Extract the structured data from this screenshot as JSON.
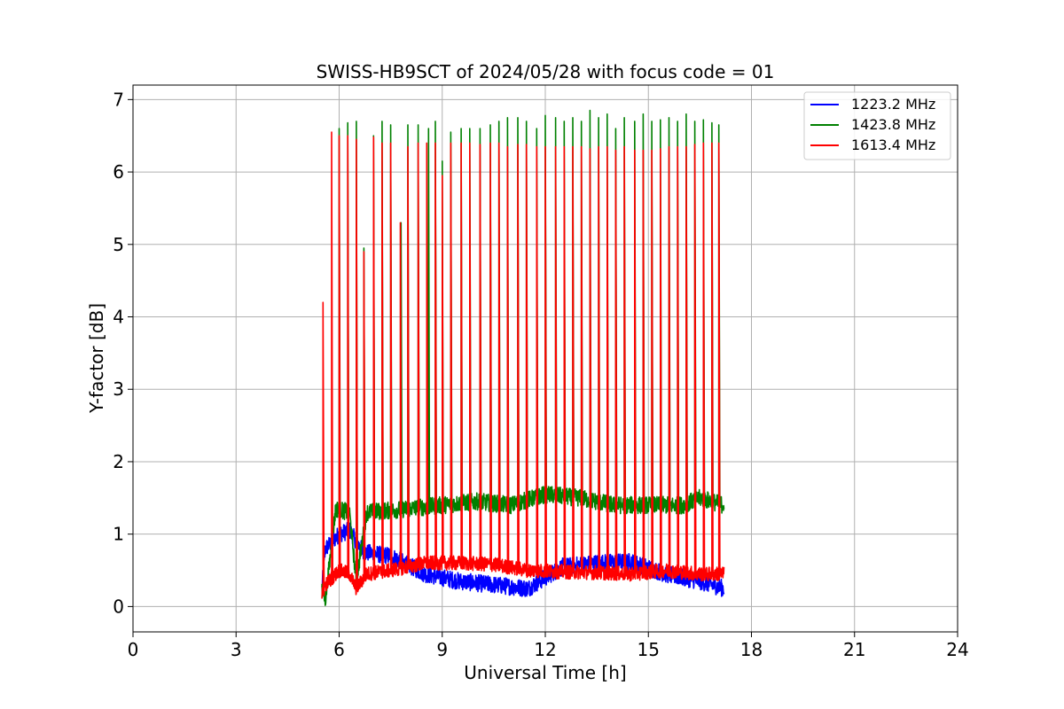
{
  "chart_data": {
    "type": "line",
    "title": "SWISS-HB9SCT of 2024/05/28 with focus code = 01",
    "xlabel": "Universal Time [h]",
    "ylabel": "Y-factor [dB]",
    "xlim": [
      0,
      24
    ],
    "ylim": [
      -0.35,
      7.2
    ],
    "xticks": [
      0,
      3,
      6,
      9,
      12,
      15,
      18,
      21,
      24
    ],
    "yticks": [
      0,
      1,
      2,
      3,
      4,
      5,
      6,
      7
    ],
    "grid": true,
    "legend_position": "top-right",
    "data_start_hour": 5.5,
    "data_end_hour": 17.2,
    "series": [
      {
        "name": "1223.2 MHz",
        "color": "#0000ff",
        "baseline": [
          [
            5.5,
            0.25
          ],
          [
            5.6,
            0.8
          ],
          [
            6.0,
            1.0
          ],
          [
            6.3,
            1.05
          ],
          [
            6.7,
            0.75
          ],
          [
            7.5,
            0.7
          ],
          [
            8.5,
            0.45
          ],
          [
            9.5,
            0.35
          ],
          [
            10.5,
            0.3
          ],
          [
            11.5,
            0.25
          ],
          [
            12.5,
            0.55
          ],
          [
            13.5,
            0.6
          ],
          [
            14.5,
            0.62
          ],
          [
            15.5,
            0.45
          ],
          [
            16.5,
            0.35
          ],
          [
            17.2,
            0.25
          ]
        ],
        "noise_amplitude": 0.12
      },
      {
        "name": "1423.8 MHz",
        "color": "#008000",
        "baseline": [
          [
            5.5,
            0.25
          ],
          [
            5.6,
            0.1
          ],
          [
            5.9,
            1.35
          ],
          [
            6.3,
            1.3
          ],
          [
            6.5,
            0.35
          ],
          [
            6.8,
            1.3
          ],
          [
            8.0,
            1.35
          ],
          [
            9.0,
            1.4
          ],
          [
            10.0,
            1.45
          ],
          [
            11.0,
            1.4
          ],
          [
            12.0,
            1.55
          ],
          [
            13.0,
            1.5
          ],
          [
            14.0,
            1.4
          ],
          [
            15.0,
            1.4
          ],
          [
            16.0,
            1.4
          ],
          [
            16.5,
            1.5
          ],
          [
            17.2,
            1.4
          ]
        ],
        "noise_amplitude": 0.12,
        "peaks": [
          [
            6.0,
            6.6
          ],
          [
            6.25,
            6.68
          ],
          [
            6.5,
            6.7
          ],
          [
            6.72,
            4.95
          ],
          [
            7.0,
            6.5
          ],
          [
            7.25,
            6.7
          ],
          [
            7.5,
            6.65
          ],
          [
            7.8,
            5.3
          ],
          [
            8.0,
            6.65
          ],
          [
            8.3,
            6.65
          ],
          [
            8.6,
            6.6
          ],
          [
            8.8,
            6.7
          ],
          [
            9.0,
            6.15
          ],
          [
            9.25,
            6.55
          ],
          [
            9.55,
            6.6
          ],
          [
            9.8,
            6.6
          ],
          [
            10.1,
            6.6
          ],
          [
            10.4,
            6.65
          ],
          [
            10.65,
            6.7
          ],
          [
            10.9,
            6.75
          ],
          [
            11.2,
            6.75
          ],
          [
            11.45,
            6.7
          ],
          [
            11.75,
            6.6
          ],
          [
            12.0,
            6.78
          ],
          [
            12.3,
            6.75
          ],
          [
            12.55,
            6.7
          ],
          [
            12.8,
            6.75
          ],
          [
            13.05,
            6.7
          ],
          [
            13.3,
            6.85
          ],
          [
            13.55,
            6.75
          ],
          [
            13.8,
            6.8
          ],
          [
            14.05,
            6.6
          ],
          [
            14.3,
            6.75
          ],
          [
            14.6,
            6.7
          ],
          [
            14.85,
            6.8
          ],
          [
            15.1,
            6.7
          ],
          [
            15.35,
            6.72
          ],
          [
            15.6,
            6.75
          ],
          [
            15.85,
            6.7
          ],
          [
            16.1,
            6.8
          ],
          [
            16.35,
            6.7
          ],
          [
            16.6,
            6.72
          ],
          [
            16.85,
            6.68
          ],
          [
            17.05,
            6.65
          ]
        ]
      },
      {
        "name": "1613.4 MHz",
        "color": "#ff0000",
        "baseline": [
          [
            5.5,
            0.15
          ],
          [
            5.6,
            0.3
          ],
          [
            6.0,
            0.5
          ],
          [
            6.3,
            0.45
          ],
          [
            6.5,
            0.25
          ],
          [
            6.8,
            0.45
          ],
          [
            7.5,
            0.5
          ],
          [
            8.5,
            0.6
          ],
          [
            9.5,
            0.6
          ],
          [
            10.5,
            0.58
          ],
          [
            11.5,
            0.5
          ],
          [
            12.5,
            0.48
          ],
          [
            13.5,
            0.47
          ],
          [
            14.5,
            0.45
          ],
          [
            15.5,
            0.5
          ],
          [
            16.5,
            0.45
          ],
          [
            17.2,
            0.45
          ]
        ],
        "noise_amplitude": 0.1,
        "peaks": [
          [
            5.53,
            4.2
          ],
          [
            5.78,
            6.55
          ],
          [
            6.0,
            6.5
          ],
          [
            6.25,
            6.5
          ],
          [
            6.5,
            6.45
          ],
          [
            6.72,
            4.9
          ],
          [
            7.0,
            6.48
          ],
          [
            7.25,
            6.4
          ],
          [
            7.5,
            6.4
          ],
          [
            7.78,
            5.3
          ],
          [
            8.0,
            6.35
          ],
          [
            8.3,
            6.4
          ],
          [
            8.55,
            6.4
          ],
          [
            8.8,
            6.4
          ],
          [
            9.0,
            5.95
          ],
          [
            9.25,
            6.4
          ],
          [
            9.55,
            6.4
          ],
          [
            9.8,
            6.4
          ],
          [
            10.1,
            6.38
          ],
          [
            10.4,
            6.4
          ],
          [
            10.65,
            6.4
          ],
          [
            10.9,
            6.35
          ],
          [
            11.2,
            6.38
          ],
          [
            11.45,
            6.38
          ],
          [
            11.75,
            6.35
          ],
          [
            12.0,
            6.35
          ],
          [
            12.3,
            6.35
          ],
          [
            12.55,
            6.35
          ],
          [
            12.8,
            6.35
          ],
          [
            13.05,
            6.35
          ],
          [
            13.3,
            6.32
          ],
          [
            13.55,
            6.35
          ],
          [
            13.8,
            6.35
          ],
          [
            14.05,
            6.3
          ],
          [
            14.3,
            6.35
          ],
          [
            14.6,
            6.3
          ],
          [
            14.85,
            6.3
          ],
          [
            15.1,
            6.3
          ],
          [
            15.35,
            6.32
          ],
          [
            15.6,
            6.35
          ],
          [
            15.85,
            6.35
          ],
          [
            16.1,
            6.35
          ],
          [
            16.35,
            6.38
          ],
          [
            16.6,
            6.4
          ],
          [
            16.85,
            6.4
          ],
          [
            17.05,
            6.4
          ]
        ]
      }
    ]
  }
}
